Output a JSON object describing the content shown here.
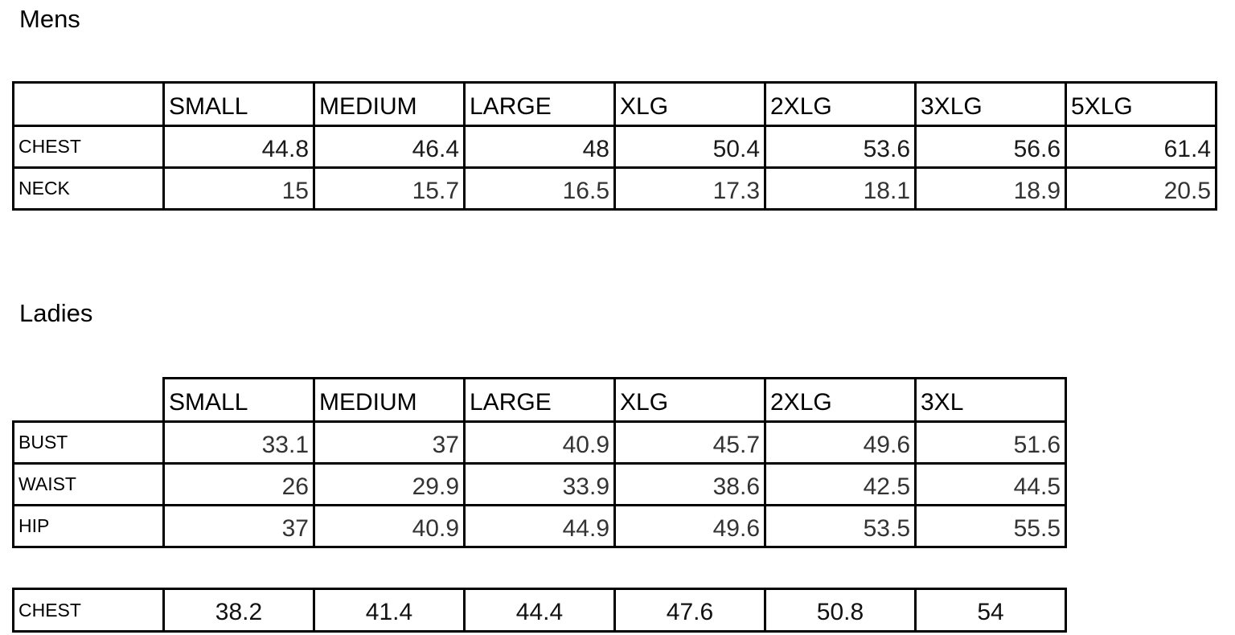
{
  "mens": {
    "title": "Mens",
    "headers": [
      "SMALL",
      "MEDIUM",
      "LARGE",
      "XLG",
      "2XLG",
      "3XLG",
      "5XLG"
    ],
    "rows": [
      {
        "label": "CHEST",
        "values": [
          "44.8",
          "46.4",
          "48",
          "50.4",
          "53.6",
          "56.6",
          "61.4"
        ]
      },
      {
        "label": "NECK",
        "values": [
          "15",
          "15.7",
          "16.5",
          "17.3",
          "18.1",
          "18.9",
          "20.5"
        ]
      }
    ]
  },
  "ladies": {
    "title": "Ladies",
    "headers": [
      "SMALL",
      "MEDIUM",
      "LARGE",
      "XLG",
      "2XLG",
      "3XL"
    ],
    "rows": [
      {
        "label": "BUST",
        "values": [
          "33.1",
          "37",
          "40.9",
          "45.7",
          "49.6",
          "51.6"
        ]
      },
      {
        "label": "WAIST",
        "values": [
          "26",
          "29.9",
          "33.9",
          "38.6",
          "42.5",
          "44.5"
        ]
      },
      {
        "label": "HIP",
        "values": [
          "37",
          "40.9",
          "44.9",
          "49.6",
          "53.5",
          "55.5"
        ]
      }
    ],
    "chest_row": {
      "label": "CHEST",
      "values": [
        "38.2",
        "41.4",
        "44.4",
        "47.6",
        "50.8",
        "54"
      ]
    }
  }
}
